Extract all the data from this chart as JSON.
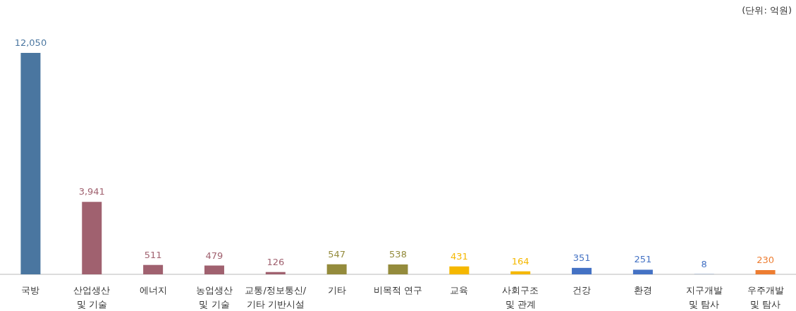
{
  "chart_data": {
    "type": "bar",
    "annotations": [
      "(단위: 억원)"
    ],
    "categories": [
      "국방",
      "산업생산\n및 기술",
      "에너지",
      "농업생산\n및 기술",
      "교통/정보통신/\n기타 기반시설",
      "기타",
      "비목적 연구",
      "교육",
      "사회구조\n및 관계",
      "건강",
      "환경",
      "지구개발\n및 탐사",
      "우주개발\n및 탐사"
    ],
    "values": [
      12050,
      3941,
      511,
      479,
      126,
      547,
      538,
      431,
      164,
      351,
      251,
      8,
      230
    ],
    "value_labels": [
      "12,050",
      "3,941",
      "511",
      "479",
      "126",
      "547",
      "538",
      "431",
      "164",
      "351",
      "251",
      "8",
      "230"
    ],
    "colors": [
      "#4a76a0",
      "#a0616f",
      "#a0616f",
      "#a0616f",
      "#a0616f",
      "#948b3c",
      "#948b3c",
      "#f5b800",
      "#f5b800",
      "#4472c4",
      "#4472c4",
      "#4472c4",
      "#ed7d31"
    ]
  }
}
